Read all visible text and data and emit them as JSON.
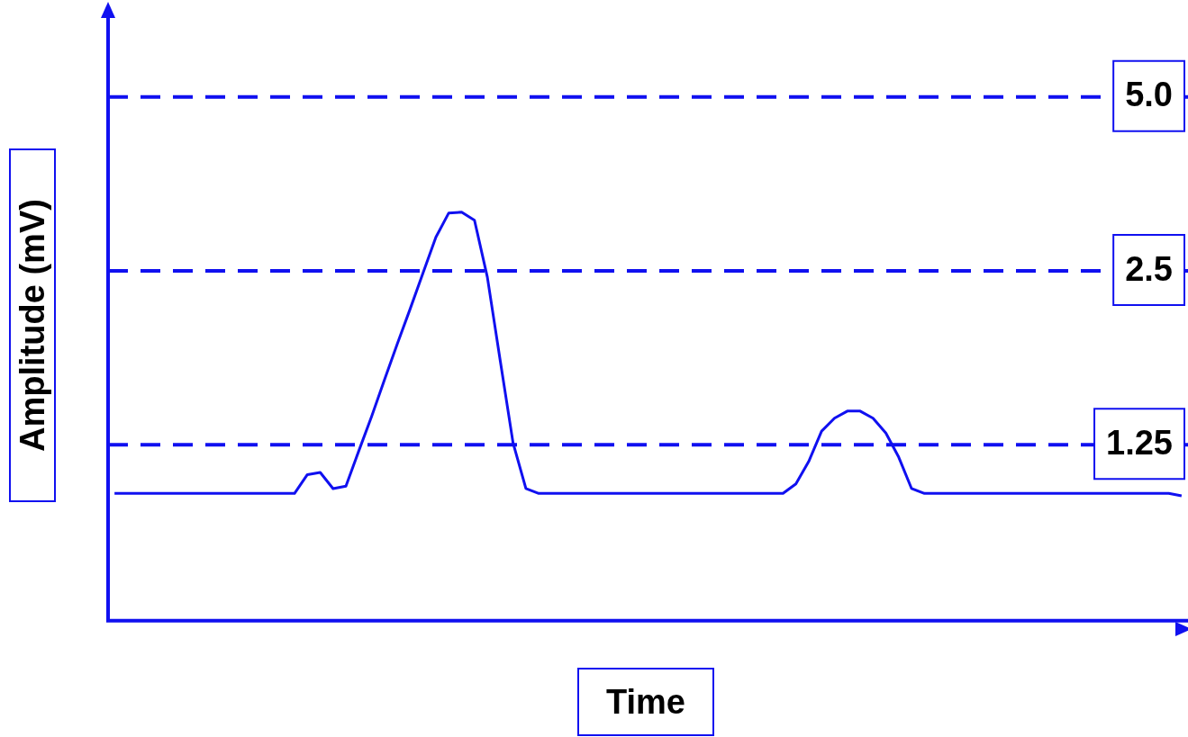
{
  "chart_data": {
    "type": "line",
    "xlabel": "Time",
    "ylabel": "Amplitude (mV)",
    "log": "y",
    "ylim": [
      0.62,
      7
    ],
    "yticks": [
      {
        "value": 1.25,
        "label": "1.25"
      },
      {
        "value": 2.5,
        "label": "2.5"
      },
      {
        "value": 5,
        "label": "5.0"
      }
    ],
    "tick_labels": "y",
    "grid": "y",
    "legend": false,
    "marker": "none",
    "line_style": "solid",
    "categories": [
      null,
      null,
      null,
      null,
      null,
      null,
      null,
      null,
      null,
      null,
      null,
      null,
      null,
      null,
      null,
      null,
      null,
      null,
      null,
      null,
      null,
      null,
      null,
      null,
      null,
      null,
      null,
      null,
      null,
      null,
      null,
      null,
      null,
      null,
      null,
      null,
      null,
      null,
      null,
      null,
      null,
      null,
      null,
      null,
      null,
      null,
      null,
      null,
      null,
      null,
      null,
      null,
      null,
      null,
      null,
      null,
      null,
      null,
      null,
      null,
      null,
      null,
      null,
      null,
      null,
      null,
      null,
      null,
      null,
      null,
      null,
      null,
      null,
      null,
      null,
      null,
      null,
      null,
      null,
      null,
      null,
      null,
      null,
      null
    ],
    "series": [
      {
        "color": "#1010f0",
        "values": [
          1.03,
          1.03,
          1.03,
          1.03,
          1.03,
          1.03,
          1.03,
          1.03,
          1.03,
          1.03,
          1.03,
          1.03,
          1.03,
          1.03,
          1.03,
          1.11,
          1.12,
          1.05,
          1.06,
          1.22,
          1.4,
          1.62,
          1.87,
          2.15,
          2.48,
          2.86,
          3.15,
          3.16,
          3.06,
          2.44,
          1.75,
          1.26,
          1.05,
          1.03,
          1.03,
          1.03,
          1.03,
          1.03,
          1.03,
          1.03,
          1.03,
          1.03,
          1.03,
          1.03,
          1.03,
          1.03,
          1.03,
          1.03,
          1.03,
          1.03,
          1.03,
          1.03,
          1.03,
          1.07,
          1.17,
          1.32,
          1.39,
          1.43,
          1.43,
          1.39,
          1.31,
          1.19,
          1.05,
          1.03,
          1.03,
          1.03,
          1.03,
          1.03,
          1.03,
          1.03,
          1.03,
          1.03,
          1.03,
          1.03,
          1.03,
          1.03,
          1.03,
          1.03,
          1.03,
          1.03,
          1.03,
          1.03,
          1.03,
          1.02
        ]
      }
    ]
  }
}
